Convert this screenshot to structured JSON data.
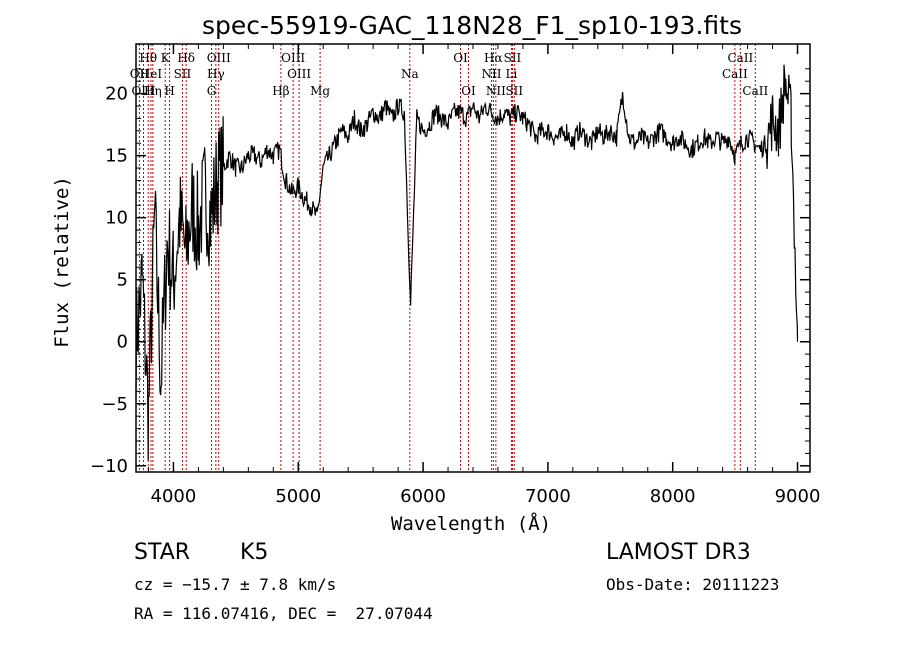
{
  "chart_data": {
    "type": "line",
    "title": "spec-55919-GAC_118N28_F1_sp10-193.fits",
    "xlabel": "Wavelength (Å)",
    "ylabel": "Flux (relative)",
    "xlim": [
      3700,
      9100
    ],
    "ylim": [
      -10.5,
      24
    ],
    "xticks": [
      4000,
      5000,
      6000,
      7000,
      8000,
      9000
    ],
    "yticks": [
      -10,
      -5,
      0,
      5,
      10,
      15,
      20
    ],
    "series": [
      {
        "name": "spectrum",
        "x": [
          3700,
          3750,
          3800,
          3850,
          3900,
          3950,
          4000,
          4050,
          4100,
          4150,
          4200,
          4250,
          4300,
          4350,
          4400,
          4450,
          4500,
          4550,
          4600,
          4650,
          4700,
          4750,
          4800,
          4850,
          4900,
          4950,
          5000,
          5050,
          5100,
          5150,
          5200,
          5250,
          5300,
          5350,
          5400,
          5450,
          5500,
          5550,
          5600,
          5650,
          5700,
          5750,
          5800,
          5850,
          5900,
          5950,
          6000,
          6050,
          6100,
          6150,
          6200,
          6250,
          6300,
          6350,
          6400,
          6450,
          6500,
          6550,
          6600,
          6650,
          6700,
          6750,
          6800,
          6850,
          6900,
          6950,
          7000,
          7050,
          7100,
          7150,
          7200,
          7250,
          7300,
          7350,
          7400,
          7450,
          7500,
          7550,
          7600,
          7650,
          7700,
          7750,
          7800,
          7850,
          7900,
          7950,
          8000,
          8050,
          8100,
          8150,
          8200,
          8250,
          8300,
          8350,
          8400,
          8450,
          8500,
          8550,
          8600,
          8650,
          8700,
          8750,
          8800,
          8850,
          8900,
          8950,
          9000
        ],
        "values": [
          0,
          5,
          -6,
          10,
          -3,
          8,
          5,
          10,
          7,
          11,
          9,
          12,
          10,
          13,
          14,
          15,
          14,
          14,
          15,
          15,
          14.5,
          15.5,
          15,
          15.5,
          13,
          12,
          12.5,
          11.5,
          11,
          10,
          14,
          15,
          16,
          17,
          16.5,
          18,
          17,
          17.5,
          18.5,
          18,
          19,
          18,
          19,
          18.5,
          3,
          18,
          17,
          17.5,
          18.5,
          18,
          17.5,
          18.5,
          18.5,
          18,
          19,
          18,
          19,
          18.5,
          18,
          18.5,
          18,
          18.5,
          18,
          17.5,
          16.5,
          17,
          17,
          16.5,
          16.5,
          17,
          16,
          17,
          16.5,
          16,
          17,
          16.5,
          17,
          16.5,
          20,
          16.5,
          16,
          16.5,
          16,
          16.5,
          17,
          16.5,
          16,
          16.5,
          16,
          15.5,
          16,
          16.5,
          16,
          16.5,
          16,
          16.5,
          15,
          16,
          16.5,
          16,
          15.5,
          16,
          18,
          17,
          21,
          18,
          0
        ]
      }
    ],
    "lines": [
      {
        "name": "Hθ",
        "x": 3798,
        "row": 1
      },
      {
        "name": "OII",
        "x": 3727,
        "row": 2
      },
      {
        "name": "OIII",
        "x": 3760,
        "row": 3
      },
      {
        "name": "HeI",
        "x": 3820,
        "row": 2
      },
      {
        "name": "Hη",
        "x": 3835,
        "row": 3
      },
      {
        "name": "K",
        "x": 3934,
        "row": 1
      },
      {
        "name": "H",
        "x": 3969,
        "row": 3
      },
      {
        "name": "SII",
        "x": 4072,
        "row": 2
      },
      {
        "name": "Hδ",
        "x": 4102,
        "row": 1
      },
      {
        "name": "OIII",
        "x": 4363,
        "row": 1
      },
      {
        "name": "Hγ",
        "x": 4340,
        "row": 2
      },
      {
        "name": "G",
        "x": 4305,
        "row": 3
      },
      {
        "name": "Hβ",
        "x": 4861,
        "row": 3
      },
      {
        "name": "OIII",
        "x": 4959,
        "row": 1
      },
      {
        "name": "OIII",
        "x": 5007,
        "row": 2
      },
      {
        "name": "Mg",
        "x": 5175,
        "row": 3
      },
      {
        "name": "Na",
        "x": 5894,
        "row": 2
      },
      {
        "name": "OI",
        "x": 6300,
        "row": 1
      },
      {
        "name": "OI",
        "x": 6364,
        "row": 3
      },
      {
        "name": "Hα",
        "x": 6563,
        "row": 1
      },
      {
        "name": "NII",
        "x": 6548,
        "row": 2
      },
      {
        "name": "NII",
        "x": 6583,
        "row": 3
      },
      {
        "name": "SII",
        "x": 6716,
        "row": 1
      },
      {
        "name": "Li",
        "x": 6708,
        "row": 2
      },
      {
        "name": "SII",
        "x": 6731,
        "row": 3
      },
      {
        "name": "CaII",
        "x": 8498,
        "row": 2
      },
      {
        "name": "CaII",
        "x": 8542,
        "row": 1
      },
      {
        "name": "CaII",
        "x": 8662,
        "row": 3
      }
    ]
  },
  "info": {
    "class": "STAR",
    "subclass": "K5",
    "survey": "LAMOST DR3",
    "cz": "cz = −15.7 ± 7.8 km/s",
    "obs_date": "Obs-Date: 20111223",
    "radec": "RA = 116.07416, DEC =  27.07044"
  },
  "colors": {
    "spectrum": "#000000",
    "line_markers": "#cc0000"
  }
}
